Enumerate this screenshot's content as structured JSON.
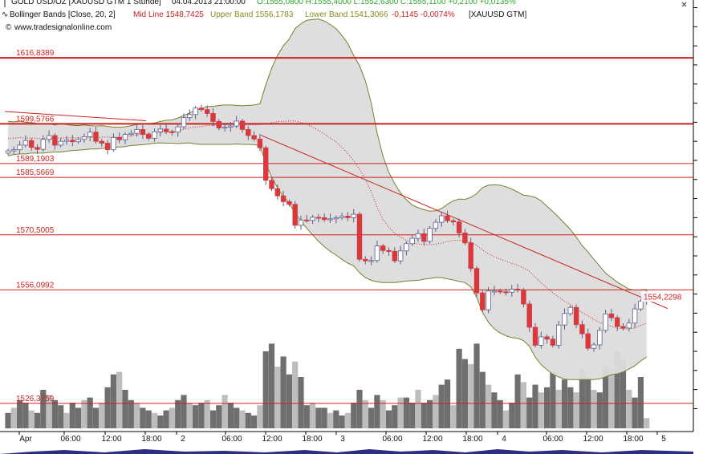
{
  "header": {
    "symbol_line": "GOLD USD/OZ [XAUUSD GTM   1 Stunde]",
    "date_time": "04.04.2013 21:00:00",
    "ohlc": "O:1555,0800 H:1555,4000 L:1552,6300 C:1555,1100 +0,2100 +0,0135%",
    "indicator_name": "Bollinger Bands [Close, 20, 2]",
    "mid_label": "Mid Line 1548,7425",
    "upper_label": "Upper Band 1556,1783",
    "lower_label": "Lower Band 1541,3066",
    "change": "-0,1145 -0,0074%",
    "instrument": "[XAUUSD GTM]",
    "website": "www.tradesignalonline.com"
  },
  "colors": {
    "candle_up": "#ffffff",
    "candle_down": "#d9383c",
    "candle_outline": "#5b5f8c",
    "band_fill": "#dcdcdc",
    "band_line": "#7d7d2c",
    "level_line": "#cc2222",
    "mid_line": "#cc2222",
    "volume_dark": "#6f6f6f",
    "volume_light": "#bdbdbd",
    "ohlc_text": "#2aa52a",
    "mid_text": "#cc2222",
    "band_text": "#8a8a22"
  },
  "chart_data": {
    "type": "candlestick",
    "title": "GOLD USD/OZ [XAUUSD GTM 1 Stunde]",
    "ylim": [
      1519,
      1632
    ],
    "levels": [
      {
        "label": "1616,8389",
        "value": 1616.8389
      },
      {
        "label": "1599,5766",
        "value": 1599.5766
      },
      {
        "label": "1589,1903",
        "value": 1589.1903
      },
      {
        "label": "1585,5669",
        "value": 1585.5669
      },
      {
        "label": "1570,5005",
        "value": 1570.5005
      },
      {
        "label": "1556,0992",
        "value": 1556.0992
      },
      {
        "label": "1526,3759",
        "value": 1526.3759
      }
    ],
    "last_price_label": "1554,2298",
    "last_price": 1554.2298,
    "x_ticks": [
      "Apr",
      "06:00",
      "12:00",
      "18:00",
      "2",
      "06:00",
      "12:00",
      "18:00",
      "3",
      "06:00",
      "12:00",
      "18:00",
      "4",
      "06:00",
      "12:00",
      "18:00",
      "5"
    ],
    "close": [
      1592.5,
      1592.8,
      1594.0,
      1595.2,
      1593.4,
      1592.9,
      1595.5,
      1596.5,
      1594.0,
      1595.0,
      1595.3,
      1594.9,
      1595.5,
      1596.2,
      1597.4,
      1595.0,
      1594.5,
      1592.8,
      1596.0,
      1595.4,
      1596.8,
      1597.1,
      1598.1,
      1596.8,
      1595.8,
      1597.5,
      1598.2,
      1597.5,
      1597.4,
      1598.8,
      1601.2,
      1602.0,
      1603.7,
      1603.3,
      1602.3,
      1600.2,
      1598.5,
      1598.7,
      1599.0,
      1600.3,
      1598.1,
      1596.5,
      1595.6,
      1593.3,
      1584.8,
      1582.6,
      1580.7,
      1579.2,
      1578.5,
      1573.0,
      1574.4,
      1574.3,
      1575.1,
      1575.0,
      1574.5,
      1574.7,
      1575.0,
      1575.4,
      1575.0,
      1575.9,
      1564.1,
      1563.7,
      1563.8,
      1567.6,
      1566.4,
      1566.2,
      1563.7,
      1566.3,
      1568.2,
      1569.6,
      1570.8,
      1568.8,
      1572.2,
      1573.8,
      1575.5,
      1574.2,
      1573.9,
      1571.0,
      1568.4,
      1561.7,
      1555.3,
      1550.9,
      1555.8,
      1555.8,
      1555.6,
      1555.5,
      1556.3,
      1556.0,
      1552.4,
      1546.3,
      1541.6,
      1543.8,
      1543.2,
      1541.6,
      1546.9,
      1549.9,
      1551.5,
      1547.0,
      1544.6,
      1540.8,
      1541.7,
      1545.5,
      1549.8,
      1548.8,
      1546.5,
      1546.1,
      1547.4,
      1551.1,
      1553.1,
      1555.1
    ],
    "band_upper": [
      1600.2,
      1600.1,
      1600.3,
      1600.0,
      1599.9,
      1599.6,
      1599.5,
      1599.6,
      1599.3,
      1599.6,
      1599.4,
      1599.2,
      1599.1,
      1599.3,
      1599.1,
      1599.0,
      1599.1,
      1598.9,
      1598.7,
      1598.7,
      1598.8,
      1599.1,
      1599.4,
      1599.6,
      1599.6,
      1599.8,
      1600.2,
      1600.5,
      1600.6,
      1601.1,
      1601.8,
      1602.4,
      1603.2,
      1603.6,
      1604.1,
      1604.1,
      1604.4,
      1604.5,
      1604.5,
      1604.4,
      1604.3,
      1604.4,
      1604.5,
      1604.8,
      1609.8,
      1614.1,
      1617.5,
      1620.0,
      1621.8,
      1624.5,
      1625.8,
      1626.7,
      1626.9,
      1627.0,
      1626.5,
      1625.6,
      1624.5,
      1622.7,
      1620.6,
      1617.5,
      1614.8,
      1610.8,
      1605.0,
      1597.2,
      1591.1,
      1586.9,
      1583.9,
      1581.5,
      1579.7,
      1578.3,
      1577.6,
      1577.1,
      1576.7,
      1576.8,
      1577.4,
      1578.5,
      1579.4,
      1579.9,
      1579.8,
      1580.3,
      1581.3,
      1582.9,
      1583.5,
      1583.6,
      1583.5,
      1583.1,
      1582.5,
      1581.7,
      1580.9,
      1580.7,
      1580.3,
      1579.4,
      1578.0,
      1576.6,
      1575.1,
      1573.5,
      1571.9,
      1569.9,
      1567.7,
      1566.0,
      1564.1,
      1562.3,
      1560.5,
      1559.3,
      1558.1,
      1557.2,
      1556.3,
      1556.0,
      1556.1,
      1556.2
    ],
    "band_lower": [
      1591.2,
      1591.5,
      1591.7,
      1591.7,
      1591.9,
      1591.9,
      1591.9,
      1592.1,
      1592.2,
      1592.2,
      1592.4,
      1592.6,
      1592.7,
      1592.8,
      1593.0,
      1593.0,
      1593.1,
      1593.3,
      1593.4,
      1593.5,
      1593.6,
      1593.9,
      1594.0,
      1594.1,
      1594.3,
      1594.5,
      1594.6,
      1594.5,
      1594.5,
      1594.4,
      1594.5,
      1594.6,
      1594.3,
      1594.2,
      1594.2,
      1594.2,
      1594.2,
      1594.2,
      1594.2,
      1594.3,
      1594.2,
      1594.2,
      1594.1,
      1593.9,
      1589.2,
      1585.6,
      1582.8,
      1580.5,
      1578.8,
      1576.2,
      1574.1,
      1572.2,
      1570.5,
      1568.8,
      1567.4,
      1566.2,
      1565.2,
      1564.1,
      1563.1,
      1562.4,
      1560.6,
      1559.3,
      1558.6,
      1558.2,
      1558.0,
      1558.0,
      1558.0,
      1558.2,
      1558.4,
      1558.5,
      1558.6,
      1558.9,
      1559.1,
      1559.3,
      1559.3,
      1559.0,
      1558.7,
      1558.3,
      1558.0,
      1556.9,
      1554.1,
      1550.2,
      1547.6,
      1545.9,
      1544.8,
      1544.1,
      1543.6,
      1543.4,
      1542.8,
      1541.3,
      1538.5,
      1536.5,
      1535.2,
      1534.0,
      1533.3,
      1532.7,
      1532.6,
      1532.6,
      1532.6,
      1532.6,
      1532.6,
      1532.8,
      1533.3,
      1533.9,
      1534.1,
      1534.6,
      1535.4,
      1536.2,
      1537.5,
      1538.5
    ],
    "volume": [
      0.12,
      0.16,
      0.22,
      0.2,
      0.14,
      0.12,
      0.3,
      0.26,
      0.22,
      0.18,
      0.12,
      0.2,
      0.16,
      0.22,
      0.24,
      0.16,
      0.2,
      0.32,
      0.42,
      0.44,
      0.3,
      0.22,
      0.2,
      0.16,
      0.14,
      0.12,
      0.1,
      0.14,
      0.16,
      0.22,
      0.26,
      0.2,
      0.18,
      0.2,
      0.22,
      0.14,
      0.18,
      0.26,
      0.2,
      0.16,
      0.14,
      0.12,
      0.1,
      0.18,
      0.6,
      0.66,
      0.48,
      0.56,
      0.42,
      0.52,
      0.4,
      0.18,
      0.2,
      0.16,
      0.16,
      0.12,
      0.14,
      0.1,
      0.12,
      0.2,
      0.3,
      0.22,
      0.16,
      0.26,
      0.22,
      0.14,
      0.18,
      0.24,
      0.24,
      0.2,
      0.3,
      0.2,
      0.22,
      0.26,
      0.34,
      0.38,
      0.18,
      0.62,
      0.54,
      0.5,
      0.66,
      0.44,
      0.34,
      0.28,
      0.22,
      0.14,
      0.2,
      0.42,
      0.36,
      0.24,
      0.34,
      0.28,
      0.32,
      0.44,
      0.3,
      0.38,
      0.32,
      0.28,
      0.46,
      0.4,
      0.3,
      0.28,
      0.48,
      0.46,
      0.6,
      0.54,
      0.3,
      0.24,
      0.4,
      0.08
    ]
  }
}
